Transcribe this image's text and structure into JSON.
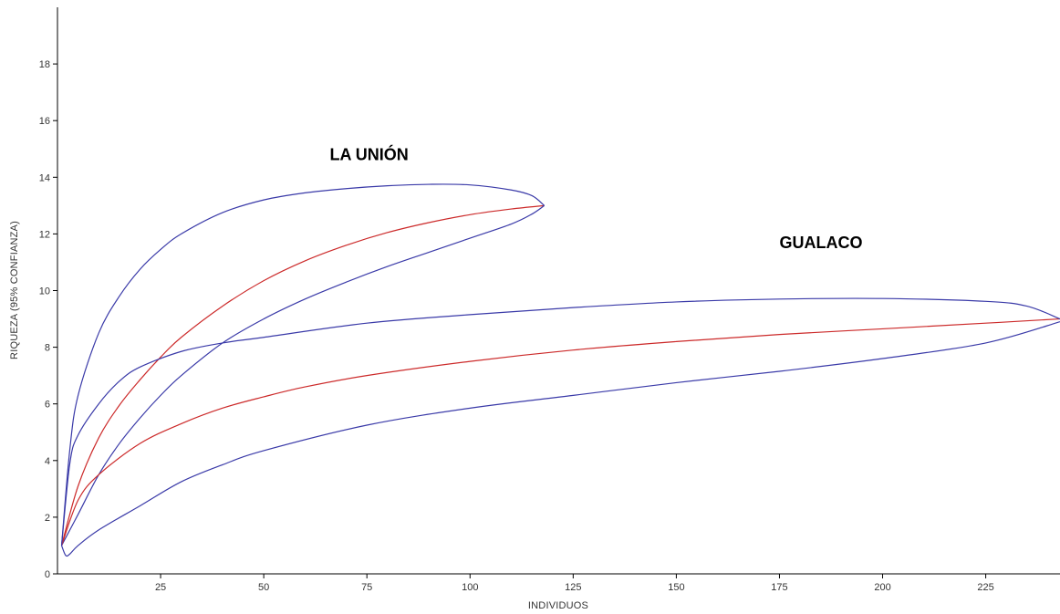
{
  "chart_data": {
    "type": "line",
    "title": "",
    "xlabel": "INDIVIDUOS",
    "ylabel": "RIQUEZA  (95% CONFIANZA)",
    "xlim": [
      0,
      243
    ],
    "ylim": [
      0,
      20
    ],
    "x_ticks": [
      25,
      50,
      75,
      100,
      125,
      150,
      175,
      200,
      225
    ],
    "y_ticks": [
      0,
      2,
      4,
      6,
      8,
      10,
      12,
      14,
      16,
      18
    ],
    "grid": false,
    "legend": "none",
    "annotations": [
      {
        "text": "LA UNIÓN",
        "x": 66,
        "y": 14.6
      },
      {
        "text": "GUALACO",
        "x": 175,
        "y": 11.5
      }
    ],
    "series": [
      {
        "group": "LA UNIÓN",
        "role": "rarefaction",
        "color": "#cc2a2a",
        "x": [
          1,
          5,
          10,
          15,
          20,
          25,
          30,
          40,
          50,
          60,
          70,
          80,
          90,
          100,
          110,
          118
        ],
        "y": [
          1.0,
          3.1,
          4.8,
          5.95,
          6.85,
          7.65,
          8.35,
          9.45,
          10.35,
          11.05,
          11.6,
          12.05,
          12.4,
          12.68,
          12.88,
          13.0
        ]
      },
      {
        "group": "LA UNIÓN",
        "role": "upper-95",
        "color": "#3a3aa8",
        "x": [
          1,
          3,
          5,
          10,
          15,
          20,
          25,
          30,
          40,
          50,
          60,
          70,
          80,
          90,
          100,
          110,
          115,
          118
        ],
        "y": [
          1.0,
          4.4,
          6.3,
          8.5,
          9.8,
          10.75,
          11.45,
          12.0,
          12.75,
          13.2,
          13.45,
          13.6,
          13.7,
          13.75,
          13.73,
          13.55,
          13.35,
          13.0
        ]
      },
      {
        "group": "LA UNIÓN",
        "role": "lower-95",
        "color": "#3a3aa8",
        "x": [
          1,
          5,
          10,
          15,
          20,
          25,
          30,
          40,
          50,
          60,
          70,
          80,
          90,
          100,
          110,
          115,
          118
        ],
        "y": [
          1.0,
          2.1,
          3.5,
          4.6,
          5.5,
          6.3,
          7.0,
          8.15,
          9.0,
          9.7,
          10.3,
          10.85,
          11.35,
          11.85,
          12.35,
          12.7,
          13.0
        ]
      },
      {
        "group": "GUALACO",
        "role": "rarefaction",
        "color": "#cc2a2a",
        "x": [
          1,
          5,
          10,
          20,
          30,
          40,
          50,
          60,
          75,
          100,
          125,
          150,
          175,
          200,
          225,
          243
        ],
        "y": [
          1.0,
          2.6,
          3.5,
          4.6,
          5.3,
          5.85,
          6.25,
          6.6,
          7.0,
          7.5,
          7.9,
          8.2,
          8.45,
          8.65,
          8.85,
          9.0
        ]
      },
      {
        "group": "GUALACO",
        "role": "upper-95",
        "color": "#3a3aa8",
        "x": [
          1,
          3,
          5,
          10,
          15,
          20,
          30,
          40,
          50,
          75,
          100,
          125,
          150,
          175,
          200,
          225,
          235,
          243
        ],
        "y": [
          1.0,
          3.9,
          4.9,
          6.0,
          6.8,
          7.3,
          7.85,
          8.15,
          8.35,
          8.85,
          9.15,
          9.4,
          9.6,
          9.7,
          9.72,
          9.62,
          9.45,
          9.0
        ]
      },
      {
        "group": "GUALACO",
        "role": "lower-95",
        "color": "#3a3aa8",
        "x": [
          1,
          2,
          3,
          5,
          10,
          20,
          30,
          40,
          50,
          75,
          100,
          125,
          150,
          175,
          200,
          225,
          243
        ],
        "y": [
          1.0,
          0.65,
          0.7,
          1.0,
          1.55,
          2.4,
          3.25,
          3.85,
          4.35,
          5.25,
          5.85,
          6.3,
          6.75,
          7.15,
          7.6,
          8.15,
          8.9
        ]
      }
    ]
  }
}
